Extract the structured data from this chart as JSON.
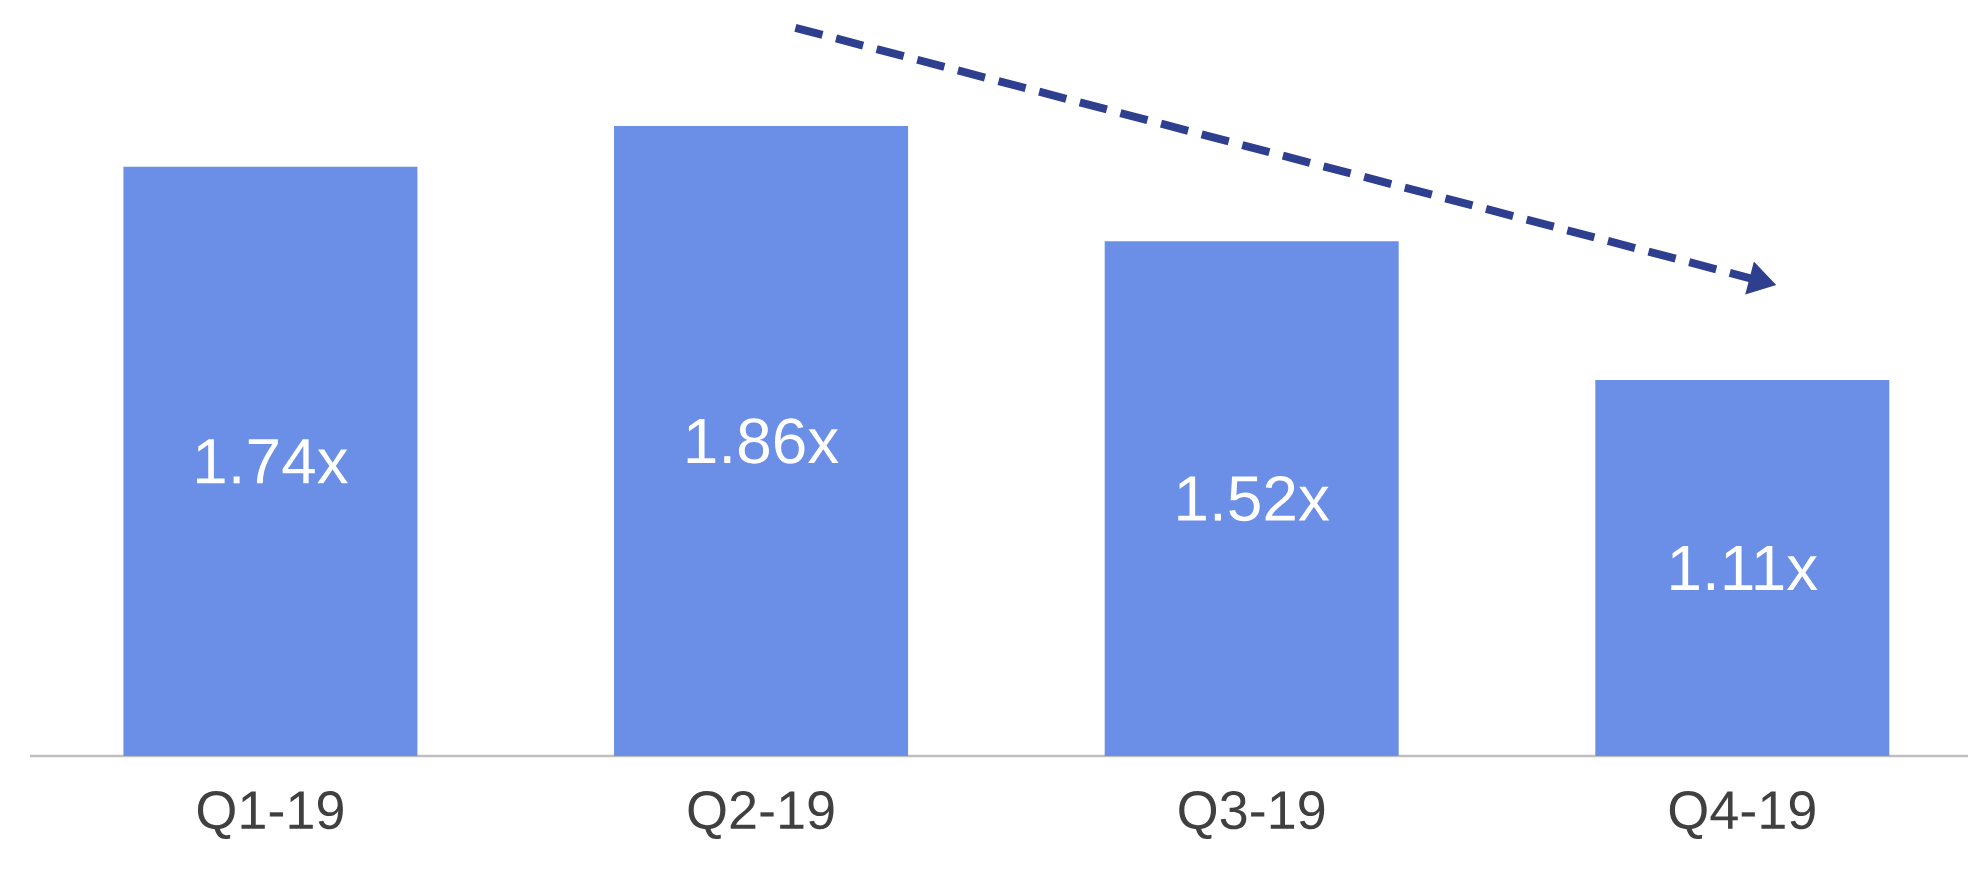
{
  "chart_data": {
    "type": "bar",
    "categories": [
      "Q1-19",
      "Q2-19",
      "Q3-19",
      "Q4-19"
    ],
    "values": [
      1.74,
      1.86,
      1.52,
      1.11
    ],
    "value_labels": [
      "1.74x",
      "1.86x",
      "1.52x",
      "1.11x"
    ],
    "color": "#6b8fe6"
  }
}
